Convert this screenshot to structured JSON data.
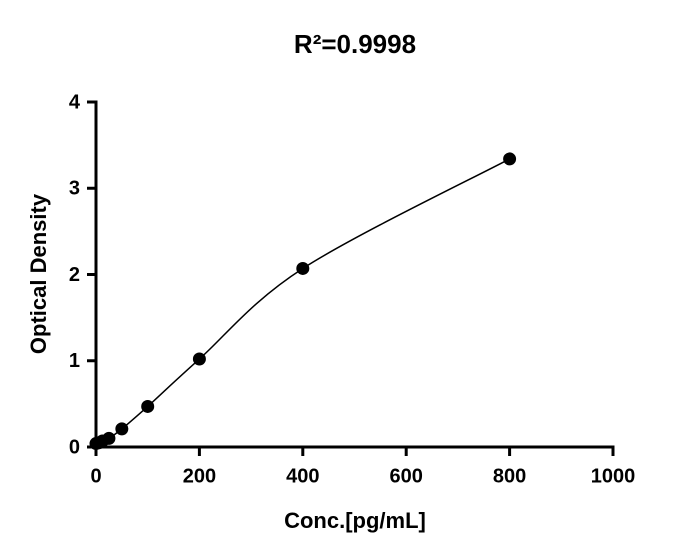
{
  "chart_data": {
    "type": "scatter",
    "title": "R²=0.9998",
    "x_label": "Conc.[pg/mL]",
    "y_label": "Optical Density",
    "x": [
      0,
      6.25,
      12.5,
      25,
      50,
      100,
      200,
      400,
      800
    ],
    "series": [
      {
        "values": [
          0.04,
          0.05,
          0.07,
          0.1,
          0.21,
          0.47,
          1.02,
          2.07,
          3.34
        ],
        "color": "#000000"
      }
    ],
    "fit_line": true,
    "xlim": [
      0,
      1000
    ],
    "xticks": [
      0,
      200,
      400,
      600,
      800,
      1000
    ],
    "ylim": [
      0,
      4
    ],
    "yticks": [
      0,
      1,
      2,
      3,
      4
    ]
  }
}
